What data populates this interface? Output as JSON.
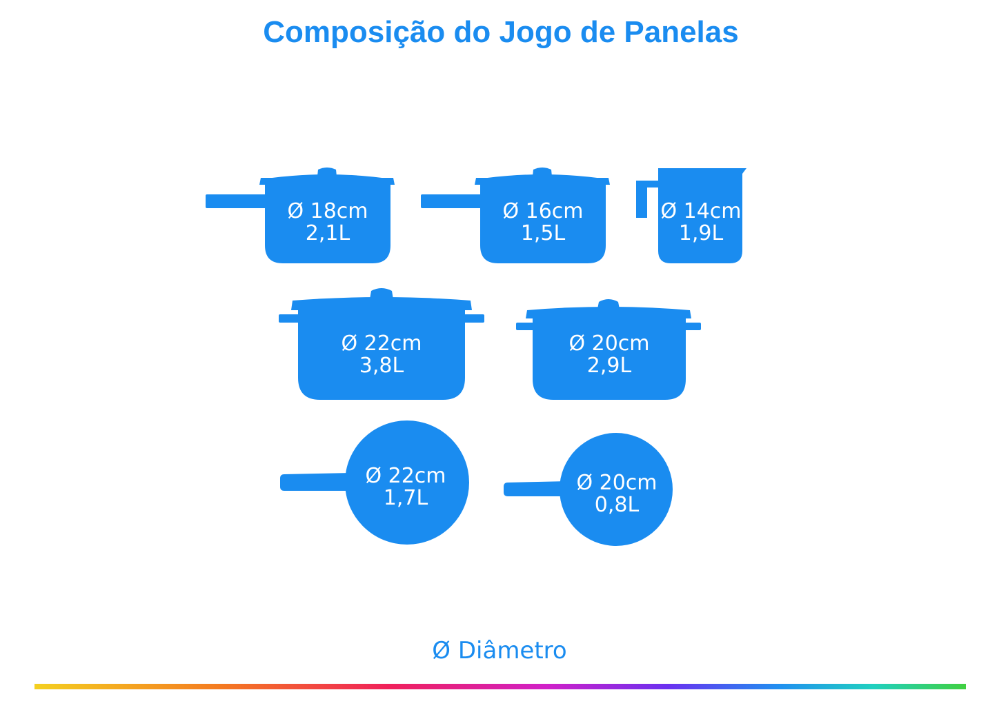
{
  "title": "Composição do Jogo de Panelas",
  "colors": {
    "accent": "#1a8cf0",
    "text_on_item": "#ffffff"
  },
  "items": [
    {
      "type": "saucepan",
      "diameter": "Ø 18cm",
      "volume": "2,1L"
    },
    {
      "type": "saucepan",
      "diameter": "Ø 16cm",
      "volume": "1,5L"
    },
    {
      "type": "milk-pot",
      "diameter": "Ø 14cm",
      "volume": "1,9L"
    },
    {
      "type": "casserole",
      "diameter": "Ø 22cm",
      "volume": "3,8L"
    },
    {
      "type": "casserole",
      "diameter": "Ø 20cm",
      "volume": "2,9L"
    },
    {
      "type": "frying-pan",
      "diameter": "Ø 22cm",
      "volume": "1,7L"
    },
    {
      "type": "frying-pan",
      "diameter": "Ø 20cm",
      "volume": "0,8L"
    }
  ],
  "legend": "Ø Diâmetro"
}
